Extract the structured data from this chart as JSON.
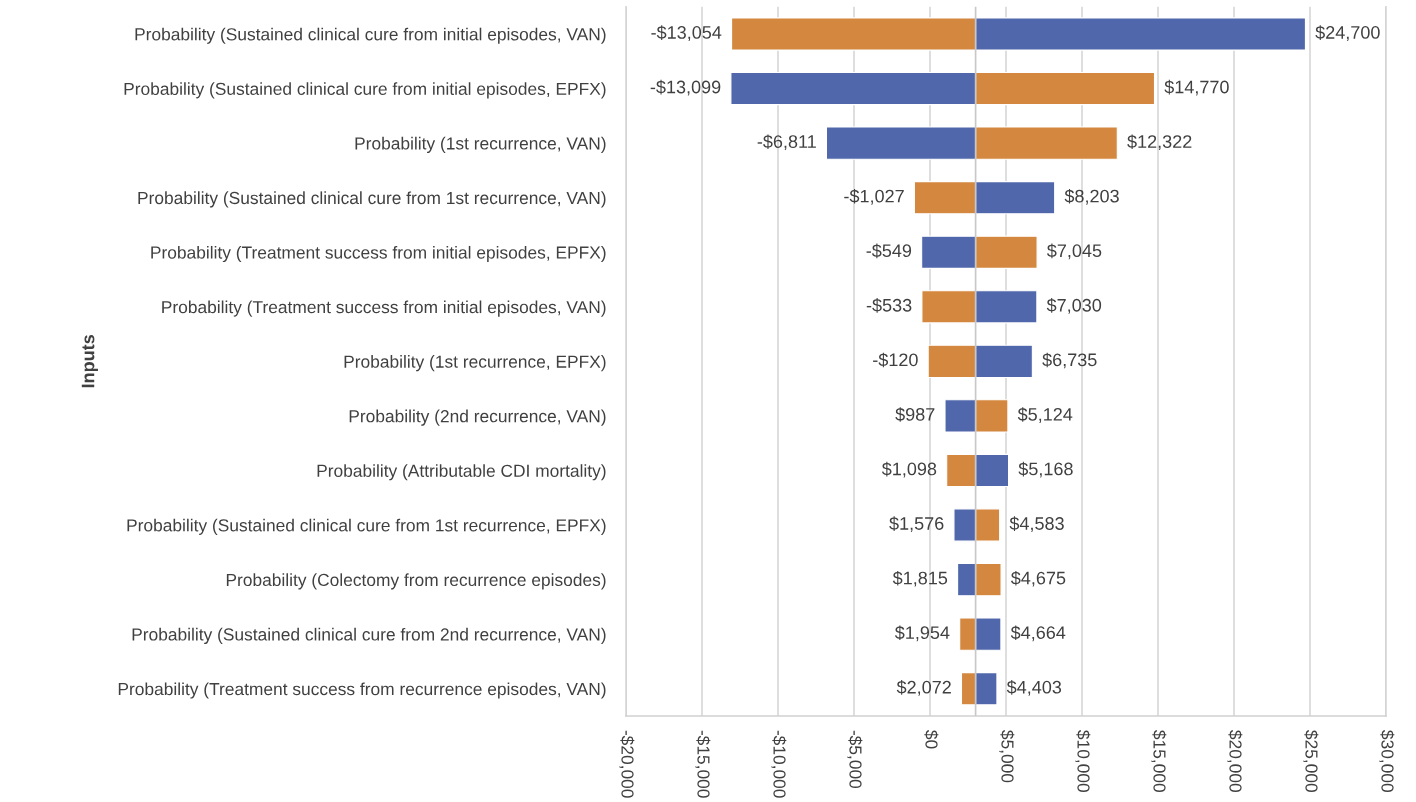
{
  "chart_data": {
    "type": "bar",
    "orientation": "horizontal",
    "ylabel": "Inputs",
    "categories": [
      "Probability (Sustained clinical cure from initial episodes, VAN)",
      "Probability (Sustained clinical cure from initial episodes, EPFX)",
      "Probability (1st recurrence, VAN)",
      "Probability (Sustained clinical cure from 1st recurrence, VAN)",
      "Probability (Treatment success from initial episodes, EPFX)",
      "Probability (Treatment success from initial episodes, VAN)",
      "Probability (1st recurrence, EPFX)",
      "Probability (2nd recurrence, VAN)",
      "Probability (Attributable CDI mortality)",
      "Probability (Sustained clinical cure from 1st recurrence, EPFX)",
      "Probability (Colectomy from recurrence episodes)",
      "Probability (Sustained clinical cure from 2nd recurrence, VAN)",
      "Probability (Treatment success from recurrence episodes, VAN)"
    ],
    "series": [
      {
        "base": [
          3000,
          3000,
          3000,
          3000,
          3000,
          3000,
          3000,
          3000,
          3000,
          3000,
          3000,
          3000,
          3000
        ],
        "values": [
          -16054,
          -16099,
          -9811,
          -4027,
          -3549,
          -3533,
          -3120,
          -2013,
          -1902,
          -1424,
          -1185,
          -1046,
          -928
        ],
        "colors": [
          "#d3873f",
          "#5067ab",
          "#5067ab",
          "#d3873f",
          "#5067ab",
          "#d3873f",
          "#d3873f",
          "#5067ab",
          "#d3873f",
          "#5067ab",
          "#5067ab",
          "#d3873f",
          "#d3873f"
        ],
        "value_labels": [
          "-$13,054",
          "-$13,099",
          "-$6,811",
          "-$1,027",
          "-$549",
          "-$533",
          "-$120",
          "$987",
          "$1,098",
          "$1,576",
          "$1,815",
          "$1,954",
          "$2,072"
        ]
      },
      {
        "base": [
          3000,
          3000,
          3000,
          3000,
          3000,
          3000,
          3000,
          3000,
          3000,
          3000,
          3000,
          3000,
          3000
        ],
        "values": [
          21700,
          11770,
          9322,
          5203,
          4045,
          4030,
          3735,
          2124,
          2168,
          1583,
          1675,
          1664,
          1403
        ],
        "colors": [
          "#5067ab",
          "#d3873f",
          "#d3873f",
          "#5067ab",
          "#d3873f",
          "#5067ab",
          "#5067ab",
          "#d3873f",
          "#5067ab",
          "#d3873f",
          "#d3873f",
          "#5067ab",
          "#5067ab"
        ],
        "value_labels": [
          "$24,700",
          "$14,770",
          "$12,322",
          "$8,203",
          "$7,045",
          "$7,030",
          "$6,735",
          "$5,124",
          "$5,168",
          "$4,583",
          "$4,675",
          "$4,664",
          "$4,403"
        ]
      }
    ],
    "xlim": [
      -20000,
      30000
    ],
    "xticks": [
      {
        "value": -20000,
        "label": "-$20,000"
      },
      {
        "value": -15000,
        "label": "-$15,000"
      },
      {
        "value": -10000,
        "label": "-$10,000"
      },
      {
        "value": -5000,
        "label": "-$5,000"
      },
      {
        "value": 0,
        "label": "$0"
      },
      {
        "value": 5000,
        "label": "$5,000"
      },
      {
        "value": 10000,
        "label": "$10,000"
      },
      {
        "value": 15000,
        "label": "$15,000"
      },
      {
        "value": 20000,
        "label": "$20,000"
      },
      {
        "value": 25000,
        "label": "$25,000"
      },
      {
        "value": 30000,
        "label": "$30,000"
      }
    ],
    "grid": "x",
    "ref_lines": [
      {
        "axis": "x",
        "value": 3000,
        "color": "#c8c8c8"
      }
    ]
  }
}
